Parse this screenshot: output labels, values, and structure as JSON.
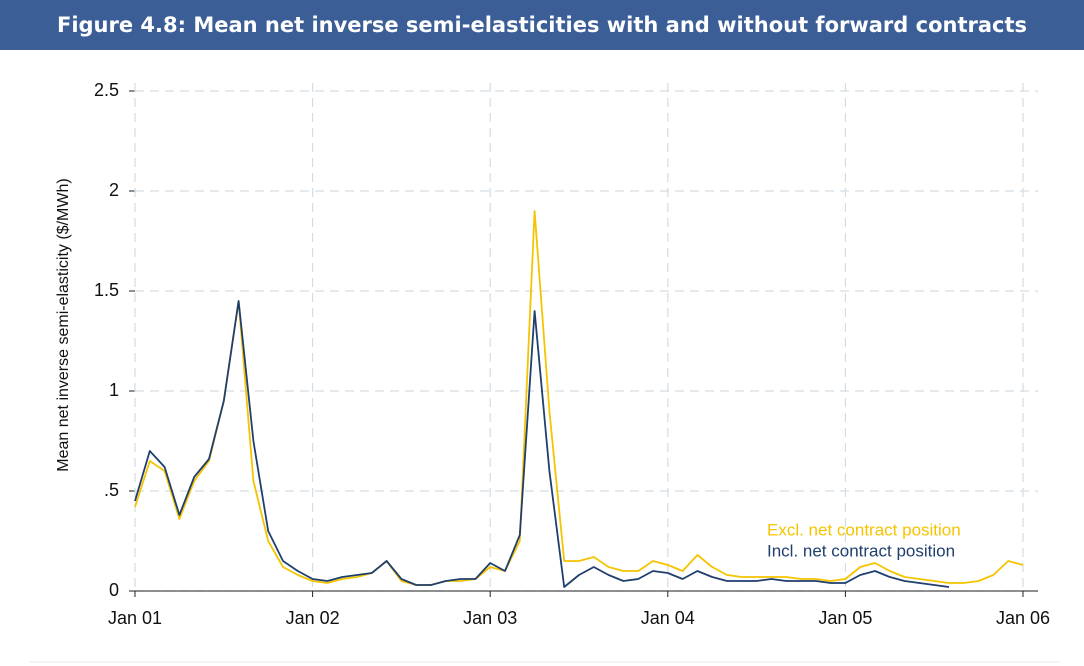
{
  "chart_data": {
    "type": "line",
    "title": "Figure 4.8: Mean net inverse semi-elasticities with and without forward contracts",
    "y_label": "Mean net inverse semi-elasticity ($/MWh)",
    "x": [
      "2001-01",
      "2001-02",
      "2001-03",
      "2001-04",
      "2001-05",
      "2001-06",
      "2001-07",
      "2001-08",
      "2001-09",
      "2001-10",
      "2001-11",
      "2001-12",
      "2002-01",
      "2002-02",
      "2002-03",
      "2002-04",
      "2002-05",
      "2002-06",
      "2002-07",
      "2002-08",
      "2002-09",
      "2002-10",
      "2002-11",
      "2002-12",
      "2003-01",
      "2003-02",
      "2003-03",
      "2003-04",
      "2003-05",
      "2003-06",
      "2003-07",
      "2003-08",
      "2003-09",
      "2003-10",
      "2003-11",
      "2003-12",
      "2004-01",
      "2004-02",
      "2004-03",
      "2004-04",
      "2004-05",
      "2004-06",
      "2004-07",
      "2004-08",
      "2004-09",
      "2004-10",
      "2004-11",
      "2004-12",
      "2005-01",
      "2005-02",
      "2005-03",
      "2005-04",
      "2005-05",
      "2005-06",
      "2005-07",
      "2005-08",
      "2005-09",
      "2005-10",
      "2005-11",
      "2005-12",
      "2006-01"
    ],
    "series": [
      {
        "name": "Excl. net contract position",
        "color": "#f5c400",
        "values": [
          0.42,
          0.65,
          0.6,
          0.36,
          0.55,
          0.65,
          0.95,
          1.45,
          0.55,
          0.25,
          0.12,
          0.08,
          0.05,
          0.04,
          0.06,
          0.07,
          0.09,
          0.15,
          0.05,
          0.03,
          0.03,
          0.05,
          0.05,
          0.06,
          0.12,
          0.1,
          0.25,
          1.9,
          0.9,
          0.15,
          0.15,
          0.17,
          0.12,
          0.1,
          0.1,
          0.15,
          0.13,
          0.1,
          0.18,
          0.12,
          0.08,
          0.07,
          0.07,
          0.07,
          0.07,
          0.06,
          0.06,
          0.05,
          0.06,
          0.12,
          0.14,
          0.1,
          0.07,
          0.06,
          0.05,
          0.04,
          0.04,
          0.05,
          0.08,
          0.15,
          0.13
        ]
      },
      {
        "name": "Incl. net contract position",
        "color": "#1f3f6e",
        "values": [
          0.45,
          0.7,
          0.62,
          0.38,
          0.57,
          0.66,
          0.95,
          1.45,
          0.75,
          0.3,
          0.15,
          0.1,
          0.06,
          0.05,
          0.07,
          0.08,
          0.09,
          0.15,
          0.06,
          0.03,
          0.03,
          0.05,
          0.06,
          0.06,
          0.14,
          0.1,
          0.28,
          1.4,
          0.6,
          0.02,
          0.08,
          0.12,
          0.08,
          0.05,
          0.06,
          0.1,
          0.09,
          0.06,
          0.1,
          0.07,
          0.05,
          0.05,
          0.05,
          0.06,
          0.05,
          0.05,
          0.05,
          0.04,
          0.04,
          0.08,
          0.1,
          0.07,
          0.05,
          0.04,
          0.03,
          0.02,
          null,
          null,
          null,
          null,
          null
        ]
      }
    ],
    "xlim": [
      "2001-01",
      "2006-01"
    ],
    "xticks": [
      {
        "value": "2001-01",
        "label": "Jan 01"
      },
      {
        "value": "2002-01",
        "label": "Jan 02"
      },
      {
        "value": "2003-01",
        "label": "Jan 03"
      },
      {
        "value": "2004-01",
        "label": "Jan 04"
      },
      {
        "value": "2005-01",
        "label": "Jan 05"
      },
      {
        "value": "2006-01",
        "label": "Jan 06"
      }
    ],
    "ylim": [
      0,
      2.5
    ],
    "yticks": [
      0,
      {
        "value": 0.5,
        "label": ".5"
      },
      1,
      1.5,
      2,
      2.5
    ],
    "grid": true,
    "legend": "lower right"
  }
}
